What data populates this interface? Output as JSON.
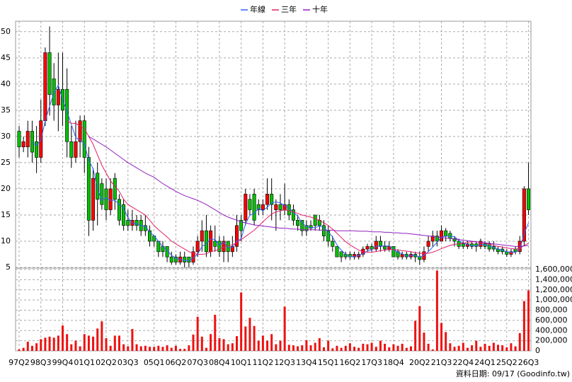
{
  "chart_data": {
    "type": "candlestick",
    "categories": [
      "97Q2",
      null,
      null,
      null,
      null,
      "98Q3",
      null,
      null,
      null,
      null,
      "99Q4",
      null,
      null,
      null,
      null,
      "01Q1",
      null,
      null,
      null,
      null,
      "02Q2",
      null,
      null,
      null,
      null,
      "03Q3",
      null,
      null,
      null,
      null,
      null,
      "05Q1",
      null,
      null,
      null,
      null,
      "06Q2",
      null,
      null,
      null,
      null,
      "07Q3",
      null,
      null,
      null,
      null,
      "08Q4",
      null,
      null,
      null,
      null,
      "10Q1",
      null,
      null,
      null,
      null,
      "11Q2",
      null,
      null,
      null,
      null,
      "12Q3",
      null,
      null,
      null,
      null,
      "13Q4",
      null,
      null,
      null,
      null,
      "15Q1",
      null,
      null,
      null,
      null,
      "16Q2",
      null,
      null,
      null,
      null,
      "17Q3",
      null,
      null,
      null,
      null,
      "18Q4",
      null,
      null,
      null,
      null,
      null,
      "20Q2",
      null,
      null,
      null,
      null,
      "21Q3",
      null,
      null,
      null,
      null,
      "22Q4",
      null,
      null,
      null,
      null,
      "24Q1",
      null,
      null,
      null,
      null,
      "25Q2",
      null,
      null,
      null,
      null,
      "26Q3"
    ],
    "open": [
      31,
      28,
      28,
      31,
      29,
      26,
      33,
      46,
      41,
      36,
      39,
      39,
      29,
      26,
      29,
      33,
      26,
      14,
      23,
      21,
      20,
      16,
      22,
      18,
      17,
      14,
      13,
      14,
      14,
      13,
      12,
      11,
      10,
      9,
      9,
      7,
      7,
      6,
      7,
      7,
      6,
      8,
      10,
      12,
      8,
      10,
      10,
      8,
      10,
      8,
      9,
      14,
      14,
      18,
      19,
      17,
      16,
      17,
      19,
      16,
      17,
      16,
      17,
      16,
      14,
      14,
      13,
      13,
      15,
      14,
      13,
      12,
      10,
      9,
      8,
      7.5,
      7.5,
      7,
      7,
      7.5,
      8.5,
      9,
      8.5,
      10,
      9,
      8.5,
      9,
      8,
      7,
      7.5,
      7,
      7.5,
      7,
      6.5,
      9,
      10,
      11,
      10,
      12,
      11.5,
      10.5,
      10,
      9.5,
      9,
      9.5,
      9.5,
      9,
      9.5,
      9.5,
      9,
      8.5,
      8.5,
      8,
      7.5,
      8.5,
      8,
      10,
      20
    ],
    "high": [
      32,
      30,
      33,
      33,
      32,
      37,
      47,
      51,
      44,
      46,
      46,
      43,
      32,
      33,
      34,
      34,
      28,
      24,
      25,
      22,
      22,
      22,
      23,
      19,
      18,
      16,
      16,
      15,
      15,
      15,
      13,
      11,
      10,
      10,
      9,
      8,
      7.5,
      8,
      8,
      7,
      9,
      11,
      14,
      15,
      13,
      13,
      11,
      11,
      10,
      11,
      15,
      15,
      20,
      19,
      20,
      18,
      18,
      22,
      22,
      18,
      19,
      21,
      18,
      17,
      15,
      14,
      14,
      14,
      15,
      15,
      14,
      13,
      11,
      9,
      8,
      8,
      8,
      8,
      8,
      9,
      9.5,
      9.5,
      11,
      11,
      10,
      10,
      9,
      8.5,
      8,
      8,
      8,
      8,
      8,
      9,
      11,
      12,
      12,
      13,
      12.5,
      12,
      11,
      10.5,
      10,
      10,
      10,
      10,
      10.5,
      10,
      10,
      10,
      9,
      9,
      8.5,
      8.5,
      9,
      11,
      20.5,
      25
    ],
    "low": [
      26,
      27,
      26,
      25,
      23,
      25,
      32,
      34,
      33,
      31,
      32,
      26,
      24,
      25,
      26,
      23,
      11,
      12,
      13,
      16,
      14,
      15,
      16,
      13,
      12,
      12,
      12,
      12,
      11,
      11,
      9,
      9,
      7,
      7,
      6,
      5.5,
      5.5,
      5.5,
      5,
      5,
      5.5,
      7,
      8,
      7,
      7,
      8,
      7,
      6,
      6,
      7,
      8,
      10,
      13,
      15,
      13,
      15,
      15,
      16,
      14,
      12,
      14,
      15,
      14,
      13,
      12,
      11,
      11,
      12,
      12,
      12,
      10,
      9,
      8,
      7,
      6,
      6.5,
      6.5,
      6.5,
      6.5,
      7,
      8,
      8,
      8,
      8,
      8,
      8,
      7,
      6.5,
      6.5,
      6.5,
      6.5,
      6,
      5.5,
      6,
      8,
      9,
      9,
      10,
      10,
      10,
      9,
      8.5,
      8.5,
      8.5,
      8.5,
      8,
      8.5,
      8.5,
      8,
      8,
      7.5,
      7.5,
      7,
      7,
      7.5,
      7.5,
      9,
      15
    ],
    "close": [
      28,
      29,
      31,
      27,
      26,
      33,
      46,
      38,
      36,
      39,
      35,
      29,
      26,
      29,
      33,
      26,
      14,
      22,
      18,
      17,
      16,
      20,
      18,
      14,
      13,
      13,
      14,
      13,
      12,
      12,
      10,
      10,
      8,
      8,
      7,
      6,
      6,
      7,
      6,
      6,
      8,
      10,
      12,
      8,
      12,
      9,
      8,
      10,
      8,
      9,
      13,
      12,
      19,
      16,
      14,
      16,
      17,
      19,
      17,
      17,
      16,
      17,
      15,
      14,
      13,
      12,
      12,
      12.5,
      13,
      13,
      11,
      10,
      9,
      7,
      7,
      7,
      7,
      7.5,
      7.5,
      8.5,
      9,
      8.5,
      10,
      9,
      8.5,
      9,
      7,
      7,
      7.5,
      7,
      7.5,
      7,
      6.5,
      8,
      10,
      11,
      10,
      12,
      11,
      10.5,
      10,
      9,
      9,
      9.5,
      9,
      9,
      10,
      9,
      8.5,
      8.5,
      8,
      8,
      7.5,
      8,
      8,
      10,
      20,
      16
    ],
    "up_color": "#ff0000",
    "down_color": "#00c000",
    "series": [
      {
        "name": "年線",
        "color": "#3060ff",
        "values": [
          null,
          null,
          null,
          28.8,
          28.3,
          29.3,
          33,
          35.8,
          38.3,
          39.8,
          37,
          34.8,
          32.3,
          29.8,
          29.3,
          28.5,
          25.5,
          23.8,
          20,
          17.8,
          18.3,
          17.8,
          17.8,
          17,
          16.3,
          14.5,
          13.5,
          13.3,
          13,
          12.8,
          11.8,
          11,
          10,
          9,
          8.3,
          7.3,
          6.8,
          6.5,
          6.3,
          6.3,
          6.8,
          7.5,
          9,
          9.5,
          10.5,
          10.3,
          9.3,
          9.8,
          8.8,
          8.8,
          10,
          10.5,
          13.3,
          15,
          15.3,
          16.3,
          15.8,
          16.5,
          17.3,
          17.5,
          17.3,
          16.8,
          16.3,
          15.5,
          14.8,
          13.5,
          12.8,
          12.6,
          12.6,
          12.9,
          12.6,
          11.8,
          10.8,
          9.3,
          8.3,
          7.5,
          7,
          7.1,
          7.3,
          7.6,
          8.1,
          8.4,
          9,
          9.1,
          9.1,
          9.1,
          8.4,
          7.9,
          7.6,
          7.1,
          7.3,
          7.3,
          7,
          7.3,
          8,
          8.9,
          9.8,
          10.8,
          11,
          10.9,
          10.9,
          10.1,
          9.6,
          9.4,
          9.1,
          9.1,
          9.4,
          9.3,
          9.1,
          8.8,
          8.5,
          8.3,
          8,
          7.9,
          7.9,
          8.4,
          11.5,
          13.5
        ]
      },
      {
        "name": "三年",
        "color": "#e0206a",
        "values": [
          null,
          null,
          null,
          null,
          null,
          null,
          null,
          null,
          null,
          null,
          null,
          33,
          32.5,
          32.5,
          32,
          31.5,
          30,
          28.5,
          26.5,
          24.5,
          23,
          21.5,
          20.5,
          19.5,
          18,
          17,
          16.5,
          16,
          15.5,
          15,
          14,
          13,
          12.2,
          11.5,
          10.8,
          10,
          9.5,
          9,
          8.5,
          8,
          7.7,
          7.5,
          7.5,
          7.6,
          8,
          8.2,
          8.5,
          8.9,
          9.1,
          9.3,
          9.8,
          10.3,
          10.9,
          11.5,
          12.1,
          12.9,
          13.7,
          14.5,
          15.2,
          15.6,
          15.8,
          16,
          15.8,
          15.6,
          15.3,
          15,
          14.8,
          14.6,
          14.3,
          14,
          13.5,
          13,
          12.3,
          11.5,
          10.7,
          9.9,
          9.3,
          8.8,
          8.3,
          8,
          7.9,
          7.9,
          8,
          8.2,
          8.3,
          8.4,
          8.4,
          8.3,
          8.2,
          8.1,
          8,
          7.8,
          7.7,
          7.6,
          7.7,
          7.9,
          8.2,
          8.6,
          8.9,
          9.2,
          9.4,
          9.5,
          9.6,
          9.8,
          9.9,
          9.9,
          9.8,
          9.6,
          9.4,
          9.2,
          9,
          8.9,
          8.7,
          8.6,
          8.5,
          8.6,
          9.2,
          9.6
        ]
      },
      {
        "name": "十年",
        "color": "#9020c0",
        "values": [
          null,
          null,
          null,
          null,
          null,
          null,
          null,
          null,
          null,
          null,
          null,
          null,
          null,
          null,
          null,
          null,
          30,
          29.5,
          29,
          28.5,
          28,
          27.4,
          26.8,
          26.2,
          25.6,
          25,
          24.5,
          24,
          23.5,
          23,
          22.6,
          22.2,
          21.6,
          21,
          20.5,
          20,
          19.5,
          19.1,
          18.7,
          18.4,
          18.1,
          17.8,
          17.4,
          17,
          16.5,
          16,
          15.5,
          15,
          14.6,
          14.3,
          14,
          13.7,
          13.5,
          13.3,
          13.1,
          13,
          12.9,
          12.8,
          12.7,
          12.6,
          12.5,
          12.5,
          12.4,
          12.3,
          12.3,
          12.2,
          12.2,
          12.2,
          12.2,
          12.1,
          12.1,
          12.1,
          12.1,
          12,
          12,
          12,
          12,
          12,
          11.9,
          11.9,
          11.9,
          11.8,
          11.8,
          11.8,
          11.7,
          11.7,
          11.6,
          11.6,
          11.5,
          11.5,
          11.4,
          11.3,
          11.2,
          11.1,
          11,
          10.9,
          10.8,
          10.7,
          10.6,
          10.5,
          10.4,
          10.3,
          10.2,
          10.1,
          10,
          9.9,
          9.8,
          9.7,
          9.6,
          9.5,
          9.4,
          9.3,
          9.2,
          9.1,
          9,
          9,
          9.1,
          9.2
        ]
      }
    ],
    "ylim": [
      5,
      52
    ],
    "yticks": [
      5,
      10,
      15,
      20,
      25,
      30,
      35,
      40,
      45,
      50
    ],
    "grid": true,
    "legend": "top",
    "volume": {
      "color": "#ee1111",
      "values": [
        30000,
        60000,
        180000,
        100000,
        150000,
        230000,
        260000,
        280000,
        260000,
        300000,
        500000,
        330000,
        130000,
        200000,
        90000,
        330000,
        300000,
        280000,
        440000,
        580000,
        250000,
        100000,
        300000,
        300000,
        130000,
        90000,
        430000,
        130000,
        90000,
        100000,
        80000,
        80000,
        100000,
        80000,
        110000,
        60000,
        100000,
        40000,
        40000,
        110000,
        320000,
        670000,
        280000,
        60000,
        330000,
        710000,
        250000,
        230000,
        130000,
        150000,
        290000,
        1150000,
        480000,
        650000,
        490000,
        200000,
        300000,
        200000,
        330000,
        130000,
        200000,
        870000,
        120000,
        110000,
        90000,
        110000,
        210000,
        110000,
        160000,
        250000,
        70000,
        200000,
        50000,
        100000,
        60000,
        100000,
        150000,
        80000,
        60000,
        140000,
        130000,
        160000,
        80000,
        200000,
        140000,
        70000,
        130000,
        100000,
        140000,
        60000,
        90000,
        590000,
        880000,
        360000,
        140000,
        30000,
        1580000,
        550000,
        370000,
        150000,
        80000,
        100000,
        160000,
        60000,
        110000,
        200000,
        80000,
        140000,
        100000,
        160000,
        120000,
        110000,
        70000,
        150000,
        90000,
        350000,
        980000,
        1190000
      ],
      "ylim": [
        0,
        1600000
      ],
      "yticks": [
        {
          "value": 0,
          "label": "0"
        },
        {
          "value": 200000,
          "label": "200,000"
        },
        {
          "value": 400000,
          "label": "400,000"
        },
        {
          "value": 600000,
          "label": "600,000"
        },
        {
          "value": 800000,
          "label": "800,000"
        },
        {
          "value": 1000000,
          "label": "1,000,000"
        },
        {
          "value": 1200000,
          "label": "1,200,000"
        },
        {
          "value": 1400000,
          "label": "1,400,000"
        },
        {
          "value": 1600000,
          "label": "1,600,000"
        }
      ]
    },
    "footnote": "資料日期: 09/17 (Goodinfo.tw)"
  }
}
